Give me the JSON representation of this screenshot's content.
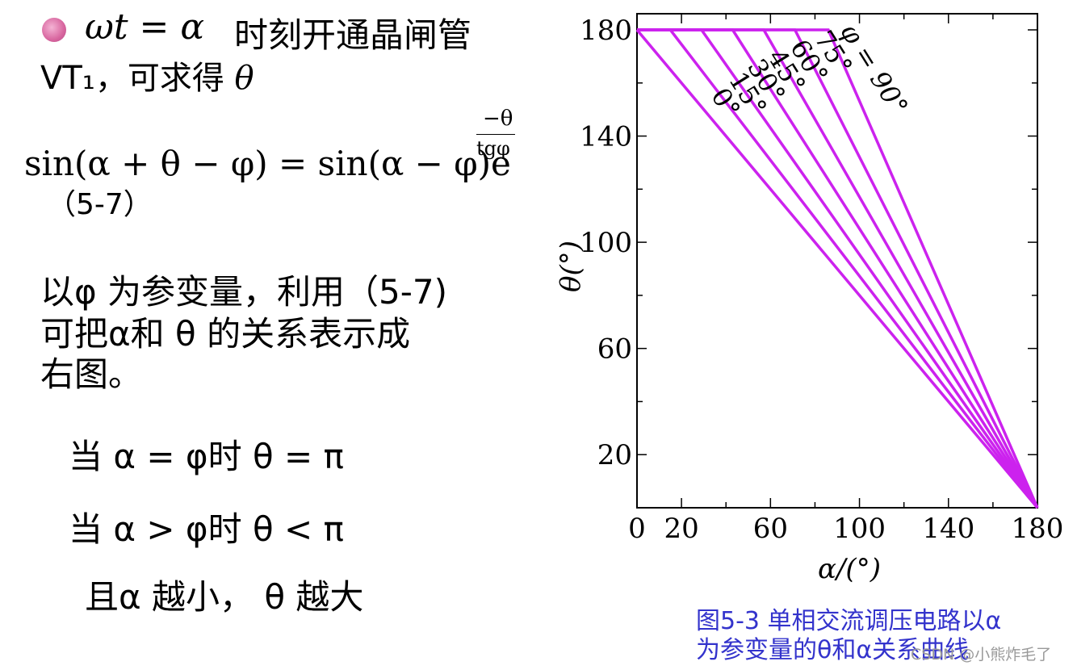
{
  "left": {
    "line1_formula": "ωt = α",
    "line1_text": " 时刻开通晶闸管",
    "line2_text": "VT₁，可求得 ",
    "line2_symbol": "θ",
    "equation_main": "sin(α + θ − φ) = sin(α − φ)e",
    "exponent_num": "−θ",
    "exponent_den": "tgφ",
    "equation_number": "（5-7）",
    "para_line1": "以φ 为参变量，利用（5-7)",
    "para_line2": "可把α和 θ  的关系表示成",
    "para_line3": "右图。",
    "cond1": "当  α = φ时   θ   =  π",
    "cond2": "当  α > φ时   θ   <  π",
    "cond3": "且α 越小，  θ  越大"
  },
  "chart_data": {
    "type": "line",
    "xlabel": "α/(°)",
    "ylabel": "θ(°)",
    "xlim": [
      0,
      180
    ],
    "ylim": [
      0,
      185
    ],
    "xticks": [
      0,
      20,
      60,
      100,
      140,
      180
    ],
    "yticks": [
      20,
      60,
      100,
      140,
      180
    ],
    "color": "#cc22ee",
    "series": [
      {
        "name": "0°",
        "x": [
          0,
          180
        ],
        "y": [
          180,
          0
        ]
      },
      {
        "name": "15°",
        "x": [
          0,
          15,
          180
        ],
        "y": [
          180,
          180,
          0
        ]
      },
      {
        "name": "30°",
        "x": [
          0,
          29,
          180
        ],
        "y": [
          180,
          180,
          0
        ]
      },
      {
        "name": "45°",
        "x": [
          0,
          43,
          180
        ],
        "y": [
          180,
          180,
          0
        ]
      },
      {
        "name": "60°",
        "x": [
          0,
          57,
          180
        ],
        "y": [
          180,
          180,
          0
        ]
      },
      {
        "name": "75°",
        "x": [
          0,
          71,
          180
        ],
        "y": [
          180,
          180,
          0
        ]
      },
      {
        "name": "φ = 90°",
        "x": [
          0,
          86,
          180
        ],
        "y": [
          180,
          180,
          0
        ]
      }
    ]
  },
  "caption": {
    "line1": "图5-3  单相交流调压电路以α",
    "line2": "为参变量的θ和α关系曲线"
  },
  "watermark": "CSDN @小熊炸毛了"
}
